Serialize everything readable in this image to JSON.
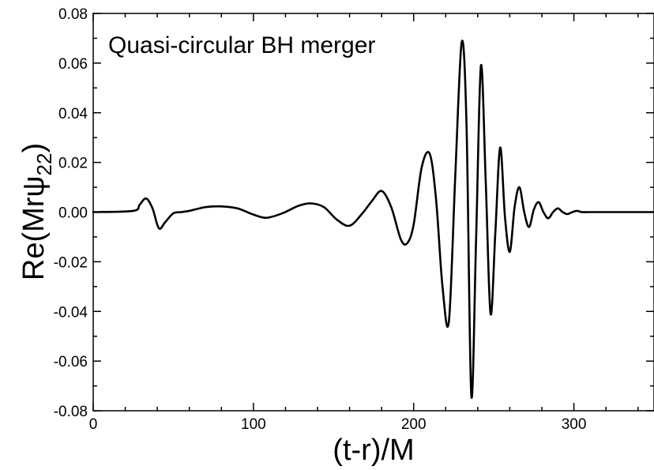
{
  "chart_data": {
    "type": "line",
    "title": "Quasi-circular BH merger",
    "xlabel": "(t-r)/M",
    "ylabel_main": "Re(Mrψ",
    "ylabel_sub": "22",
    "ylabel_close": ")",
    "xlim": [
      0,
      350
    ],
    "ylim": [
      -0.08,
      0.08
    ],
    "xticks": [
      0,
      100,
      200,
      300
    ],
    "xtick_labels": [
      "0",
      "100",
      "200",
      "300"
    ],
    "yticks": [
      -0.08,
      -0.06,
      -0.04,
      -0.02,
      0.0,
      0.02,
      0.04,
      0.06,
      0.08
    ],
    "ytick_labels": [
      "-0.08",
      "-0.06",
      "-0.04",
      "-0.02",
      "0.00",
      "0.02",
      "0.04",
      "0.06",
      "0.08"
    ],
    "grid": false,
    "legend": "none",
    "line_color": "#000000",
    "series": [
      {
        "x": [
          0,
          25,
          29,
          33,
          37,
          41,
          45,
          50,
          55,
          60,
          70,
          80,
          90,
          100,
          108,
          118,
          128,
          136,
          144,
          152,
          160,
          168,
          174,
          180,
          186,
          192,
          196,
          200,
          205,
          210,
          214,
          218,
          222,
          226,
          230,
          233,
          236,
          239,
          242,
          245,
          248,
          251,
          254,
          257,
          260,
          263,
          266,
          269,
          272,
          275,
          278,
          281,
          284,
          287,
          290,
          293,
          296,
          299,
          302,
          305,
          310,
          320,
          330,
          350
        ],
        "y": [
          0.0,
          0.0005,
          0.003,
          0.0055,
          0.0015,
          -0.0065,
          -0.004,
          -0.0005,
          0.0,
          0.0005,
          0.002,
          0.0023,
          0.0015,
          -0.001,
          -0.0023,
          -0.0005,
          0.0025,
          0.0035,
          0.002,
          -0.003,
          -0.0055,
          -0.0005,
          0.0045,
          0.0085,
          0.002,
          -0.011,
          -0.0125,
          -0.005,
          0.018,
          0.0235,
          0.005,
          -0.03,
          -0.044,
          0.015,
          0.0685,
          0.035,
          -0.074,
          -0.01,
          0.059,
          0.012,
          -0.041,
          -0.008,
          0.026,
          -0.002,
          -0.016,
          0.002,
          0.01,
          0.0,
          -0.006,
          0.001,
          0.004,
          0.0,
          -0.0025,
          0.0,
          0.0015,
          0.0,
          -0.0008,
          0.0,
          0.0005,
          0.0,
          0.0,
          0.0,
          0.0,
          0.0
        ]
      }
    ]
  }
}
